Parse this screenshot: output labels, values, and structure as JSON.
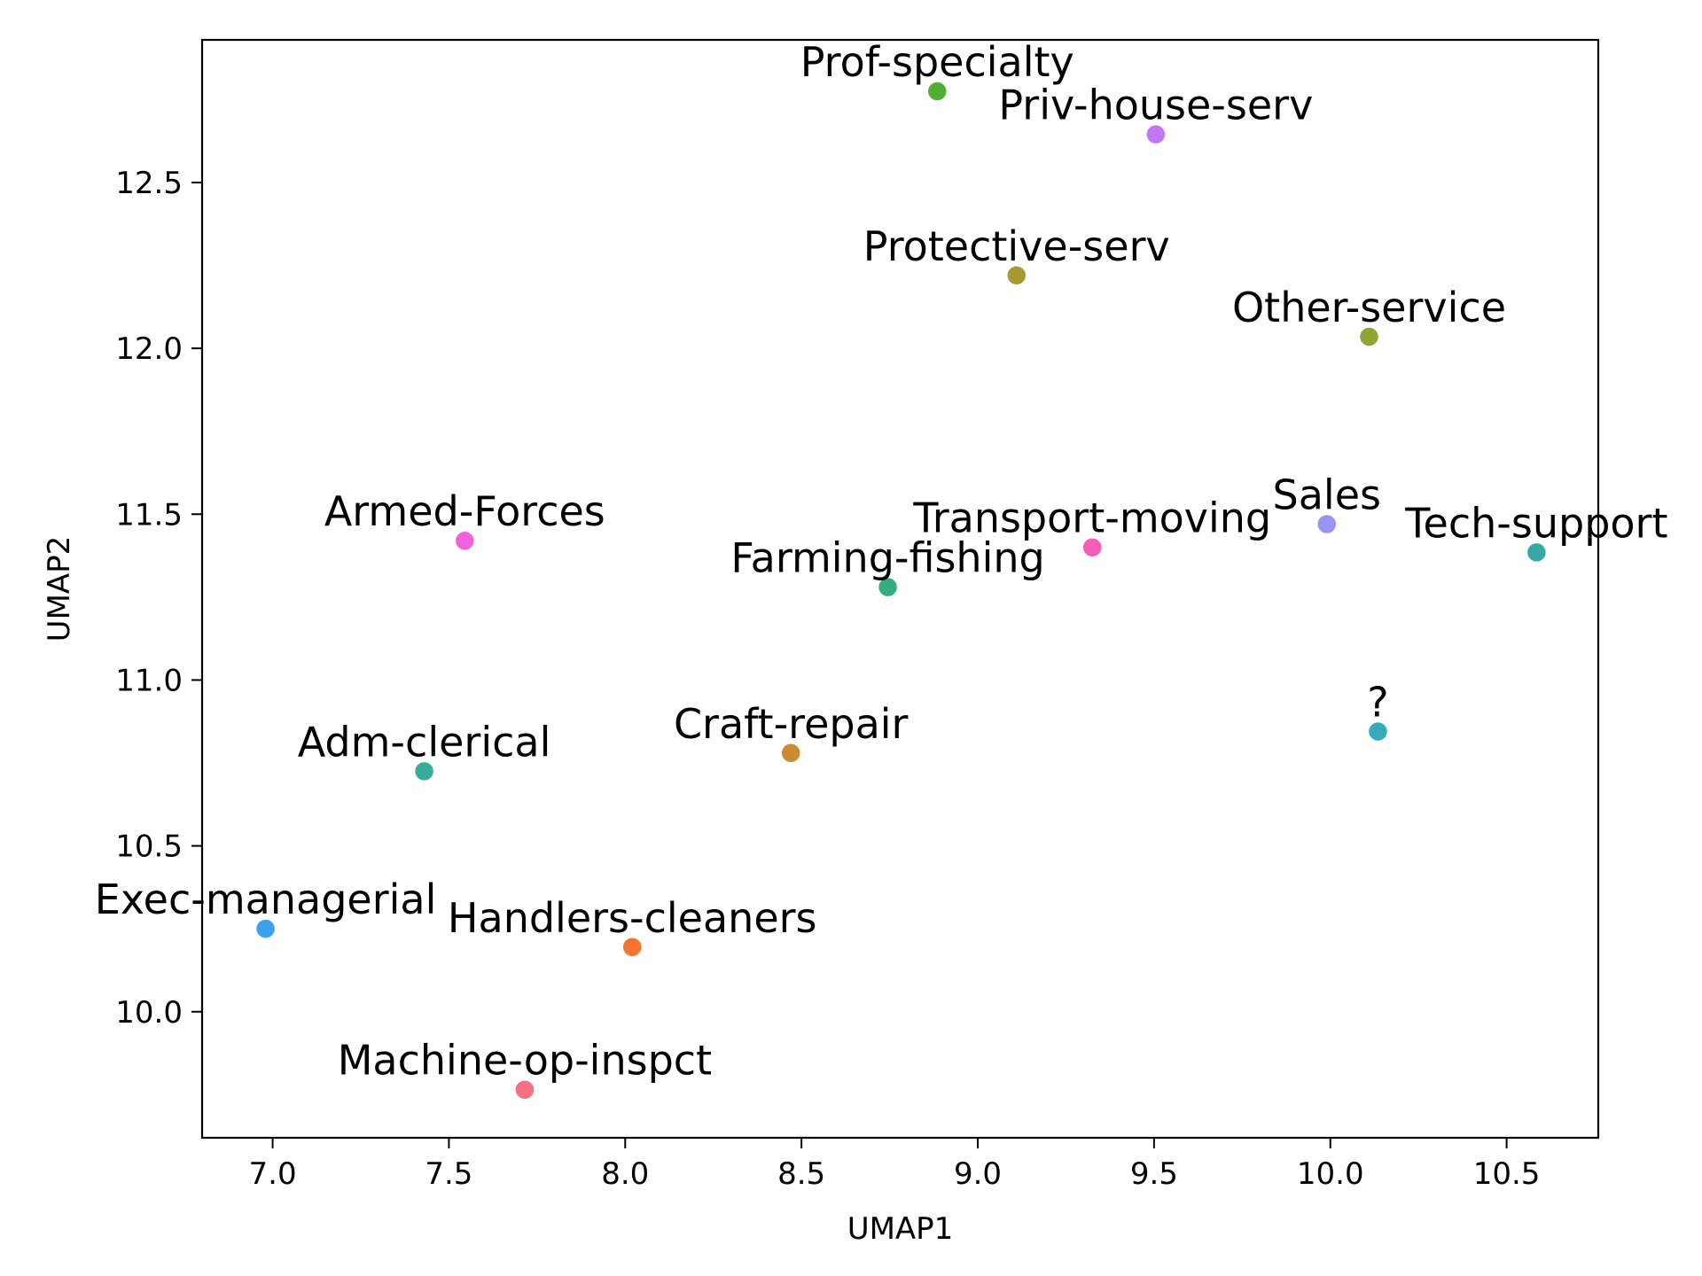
{
  "chart_data": {
    "type": "scatter",
    "title": "",
    "xlabel": "UMAP1",
    "ylabel": "UMAP2",
    "xlim": [
      6.8,
      10.76
    ],
    "ylim": [
      9.62,
      12.93
    ],
    "xticks": [
      "7.0",
      "7.5",
      "8.0",
      "8.5",
      "9.0",
      "9.5",
      "10.0",
      "10.5"
    ],
    "xtick_values": [
      7.0,
      7.5,
      8.0,
      8.5,
      9.0,
      9.5,
      10.0,
      10.5
    ],
    "yticks": [
      "10.0",
      "10.5",
      "11.0",
      "11.5",
      "12.0",
      "12.5"
    ],
    "ytick_values": [
      10.0,
      10.5,
      11.0,
      11.5,
      12.0,
      12.5
    ],
    "grid": false,
    "legend": "none",
    "points": [
      {
        "label": "Prof-specialty",
        "x": 8.885,
        "y": 12.775,
        "color": "#50b131"
      },
      {
        "label": "Priv-house-serv",
        "x": 9.505,
        "y": 12.645,
        "color": "#c476f5"
      },
      {
        "label": "Protective-serv",
        "x": 9.11,
        "y": 12.22,
        "color": "#a79a31"
      },
      {
        "label": "Other-service",
        "x": 10.11,
        "y": 12.035,
        "color": "#8ea632"
      },
      {
        "label": "Armed-Forces",
        "x": 7.545,
        "y": 11.42,
        "color": "#f461dd"
      },
      {
        "label": "Transport-moving",
        "x": 9.325,
        "y": 11.4,
        "color": "#f35fb5"
      },
      {
        "label": "Sales",
        "x": 9.99,
        "y": 11.47,
        "color": "#9893f5"
      },
      {
        "label": "Tech-support",
        "x": 10.585,
        "y": 11.385,
        "color": "#35a9a8"
      },
      {
        "label": "Farming-fishing",
        "x": 8.745,
        "y": 11.28,
        "color": "#34ae7e"
      },
      {
        "label": "?",
        "x": 10.135,
        "y": 10.845,
        "color": "#37abbe"
      },
      {
        "label": "Adm-clerical",
        "x": 7.43,
        "y": 10.725,
        "color": "#36ad9a"
      },
      {
        "label": "Craft-repair",
        "x": 8.47,
        "y": 10.78,
        "color": "#cc8b32"
      },
      {
        "label": "Exec-managerial",
        "x": 6.98,
        "y": 10.25,
        "color": "#3ca2ef"
      },
      {
        "label": "Handlers-cleaners",
        "x": 8.02,
        "y": 10.195,
        "color": "#f47532"
      },
      {
        "label": "Machine-op-inspct",
        "x": 7.715,
        "y": 9.765,
        "color": "#f47083"
      }
    ]
  }
}
